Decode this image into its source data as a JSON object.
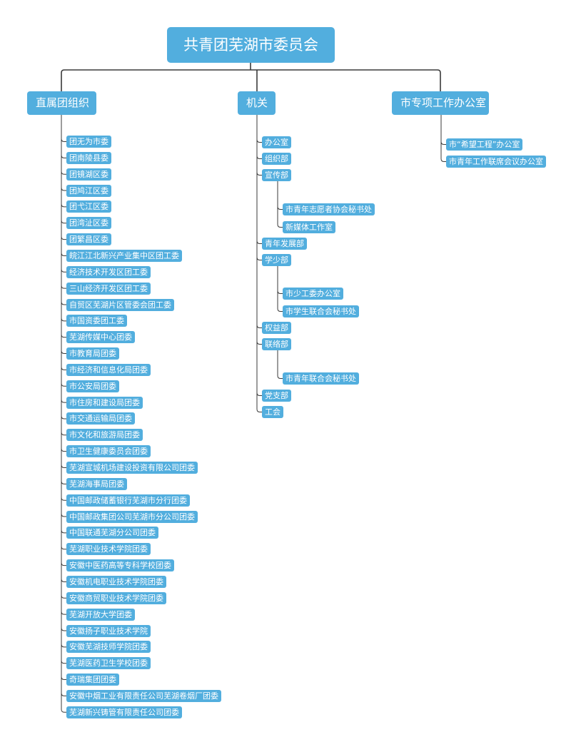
{
  "root": {
    "label": "共青团芜湖市委员会"
  },
  "branches": {
    "direct": {
      "label": "直属团组织",
      "items": [
        "团无为市委",
        "团南陵县委",
        "团镜湖区委",
        "团鸠江区委",
        "团弋江区委",
        "团湾沚区委",
        "团繁昌区委",
        "皖江江北新兴产业集中区团工委",
        "经济技术开发区团工委",
        "三山经济开发区团工委",
        "自贸区芜湖片区管委会团工委",
        "市国资委团工委",
        "芜湖传媒中心团委",
        "市教育局团委",
        "市经济和信息化局团委",
        "市公安局团委",
        "市住房和建设局团委",
        "市交通运输局团委",
        "市文化和旅游局团委",
        "市卫生健康委员会团委",
        "芜湖宣城机场建设投资有限公司团委",
        "芜湖海事局团委",
        "中国邮政储蓄银行芜湖市分行团委",
        "中国邮政集团公司芜湖市分公司团委",
        "中国联通芜湖分公司团委",
        "芜湖职业技术学院团委",
        "安徽中医药高等专科学校团委",
        "安徽机电职业技术学院团委",
        "安徽商贸职业技术学院团委",
        "芜湖开放大学团委",
        "安徽扬子职业技术学院",
        "安徽芜湖技师学院团委",
        "芜湖医药卫生学校团委",
        "奇瑞集团团委",
        "安徽中烟工业有限责任公司芜湖卷烟厂团委",
        "芜湖新兴铸管有限责任公司团委"
      ]
    },
    "organs": {
      "label": "机关",
      "items": [
        {
          "label": "办公室"
        },
        {
          "label": "组织部"
        },
        {
          "label": "宣传部",
          "children": [
            "市青年志愿者协会秘书处",
            "新媒体工作室"
          ]
        },
        {
          "label": "青年发展部"
        },
        {
          "label": "学少部",
          "children": [
            "市少工委办公室",
            "市学生联合会秘书处"
          ]
        },
        {
          "label": "权益部"
        },
        {
          "label": "联络部",
          "children": [
            "市青年联合会秘书处"
          ]
        },
        {
          "label": "党支部"
        },
        {
          "label": "工会"
        }
      ]
    },
    "special": {
      "label": "市专项工作办公室",
      "items": [
        "市“希望工程”办公室",
        "市青年工作联席会议办公室"
      ]
    }
  },
  "colors": {
    "node": "#52aede",
    "line": "#3a3a3a",
    "text": "#ffffff"
  }
}
